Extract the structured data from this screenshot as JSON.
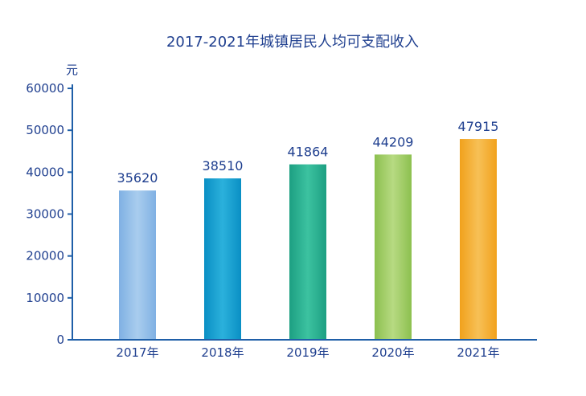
{
  "chart_data": {
    "type": "bar",
    "title": "2017-2021年城镇居民人均可支配收入",
    "ylabel": "元",
    "xlabel": "",
    "categories": [
      "2017年",
      "2018年",
      "2019年",
      "2020年",
      "2021年"
    ],
    "values": [
      35620,
      38510,
      41864,
      44209,
      47915
    ],
    "data_labels": [
      "35620",
      "38510",
      "41864",
      "44209",
      "47915"
    ],
    "ylim": [
      0,
      60000
    ],
    "yticks": [
      0,
      10000,
      20000,
      30000,
      40000,
      50000,
      60000
    ],
    "ytick_labels": [
      "0",
      "10000",
      "20000",
      "30000",
      "40000",
      "50000",
      "60000"
    ],
    "grid": false,
    "colors": [
      [
        "#7fb0e3",
        "#a9cdee"
      ],
      [
        "#0a8fc4",
        "#2bb1dc"
      ],
      [
        "#1d9f82",
        "#3cc2a0"
      ],
      [
        "#8cc04f",
        "#b7da82"
      ],
      [
        "#f1a11c",
        "#f7c056"
      ]
    ]
  }
}
